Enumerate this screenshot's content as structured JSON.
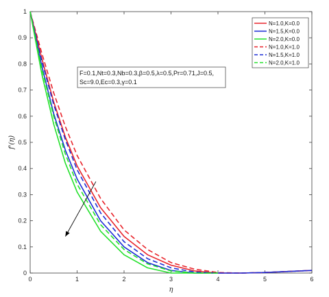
{
  "chart_data": {
    "type": "line",
    "xlabel": "η",
    "ylabel": "f'(η)",
    "xlim": [
      0,
      6
    ],
    "ylim": [
      0,
      1
    ],
    "grid": false,
    "legend_position": "top-right",
    "x_ticks": [
      "0",
      "1",
      "2",
      "3",
      "4",
      "5",
      "6"
    ],
    "y_ticks": [
      "0",
      "0.1",
      "0.2",
      "0.3",
      "0.4",
      "0.5",
      "0.6",
      "0.7",
      "0.8",
      "0.9",
      "1"
    ],
    "annotation": {
      "line1": "F=0.1,Nt=0.3,Nb=0.3,β=0.5,λ=0.5,Pr=0.71,J=0.5,",
      "line2": "Sc=9.0,Ec=0.3,γ=0.1"
    },
    "arrow": {
      "from": [
        1.4,
        0.35
      ],
      "to": [
        0.75,
        0.14
      ]
    },
    "series": [
      {
        "name": "N=1.0,K=0.0",
        "color": "#e8232a",
        "dash": "solid",
        "x": [
          0,
          0.25,
          0.5,
          0.75,
          1,
          1.5,
          2,
          2.5,
          3,
          3.5,
          4,
          4.5,
          5,
          5.5,
          6
        ],
        "y": [
          1,
          0.82,
          0.655,
          0.52,
          0.41,
          0.25,
          0.14,
          0.07,
          0.03,
          0.008,
          0.0,
          0.0,
          0.002,
          0.006,
          0.01
        ]
      },
      {
        "name": "N=1.5,K=0.0",
        "color": "#1a2bd6",
        "dash": "solid",
        "x": [
          0,
          0.25,
          0.5,
          0.75,
          1,
          1.5,
          2,
          2.5,
          3,
          3.5,
          4,
          4.5,
          5,
          5.5,
          6
        ],
        "y": [
          1,
          0.79,
          0.61,
          0.47,
          0.36,
          0.2,
          0.1,
          0.04,
          0.01,
          0.0,
          0.0,
          0.0,
          0.002,
          0.006,
          0.01
        ]
      },
      {
        "name": "N=2.0,K=0.0",
        "color": "#22e02a",
        "dash": "solid",
        "x": [
          0,
          0.25,
          0.5,
          0.75,
          1,
          1.5,
          2,
          2.5,
          3,
          3.5,
          4
        ],
        "y": [
          1,
          0.76,
          0.57,
          0.42,
          0.31,
          0.16,
          0.07,
          0.02,
          0.0,
          0.0,
          0.0
        ]
      },
      {
        "name": "N=1.0,K=1.0",
        "color": "#e8232a",
        "dash": "dashed",
        "x": [
          0,
          0.25,
          0.5,
          0.75,
          1,
          1.5,
          2,
          2.5,
          3,
          3.5,
          4,
          4.5,
          5,
          5.5,
          6
        ],
        "y": [
          1,
          0.84,
          0.69,
          0.56,
          0.45,
          0.285,
          0.165,
          0.09,
          0.04,
          0.015,
          0.002,
          0.0,
          0.002,
          0.006,
          0.01
        ]
      },
      {
        "name": "N=1.5,K=1.0",
        "color": "#1a2bd6",
        "dash": "dashed",
        "x": [
          0,
          0.25,
          0.5,
          0.75,
          1,
          1.5,
          2,
          2.5,
          3,
          3.5,
          4,
          4.5,
          5,
          5.5,
          6
        ],
        "y": [
          1,
          0.81,
          0.645,
          0.51,
          0.395,
          0.23,
          0.12,
          0.055,
          0.02,
          0.004,
          0.0,
          0.0,
          0.002,
          0.006,
          0.01
        ]
      },
      {
        "name": "N=2.0,K=1.0",
        "color": "#22e02a",
        "dash": "dashed",
        "x": [
          0,
          0.25,
          0.5,
          0.75,
          1,
          1.5,
          2,
          2.5,
          3,
          3.5,
          4
        ],
        "y": [
          1,
          0.78,
          0.6,
          0.455,
          0.34,
          0.185,
          0.09,
          0.035,
          0.008,
          0.0,
          0.0
        ]
      }
    ]
  }
}
